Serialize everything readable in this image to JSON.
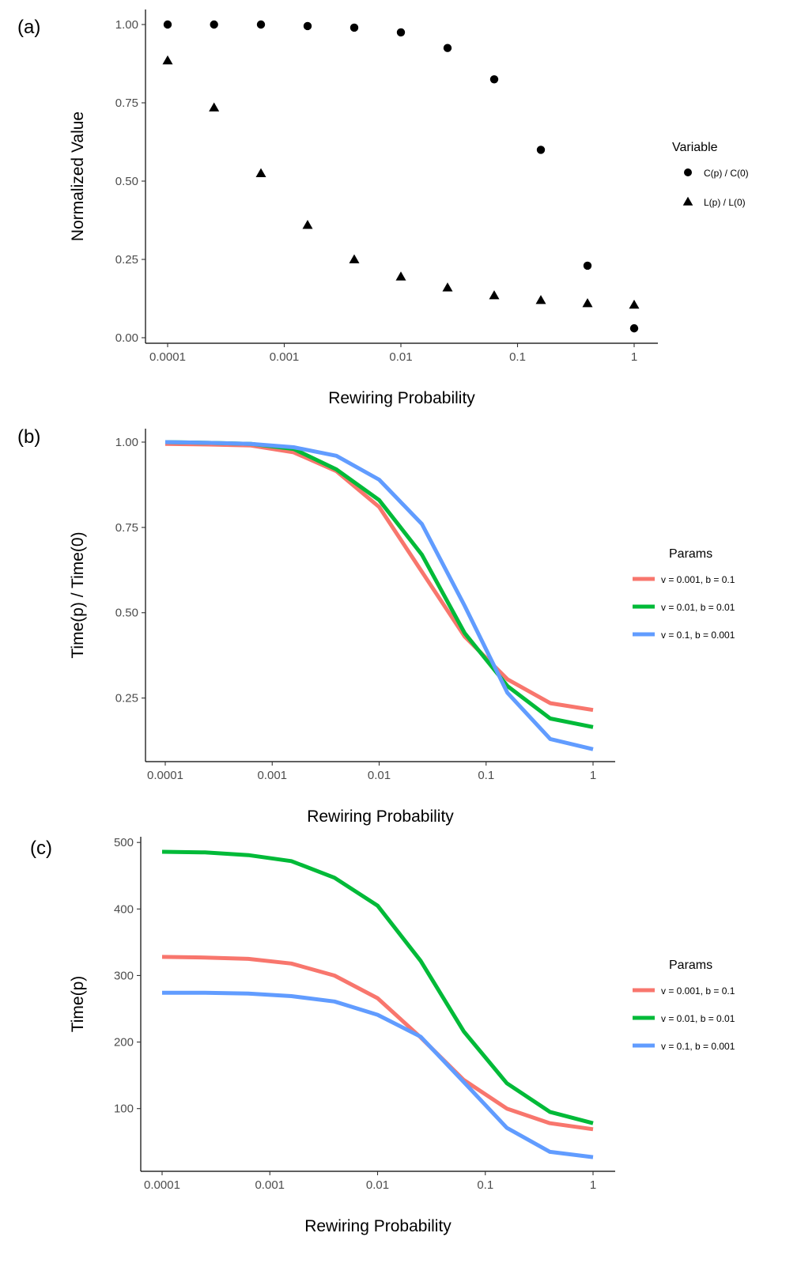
{
  "chart_data": [
    {
      "panel_label": "(a)",
      "type": "scatter",
      "x_scale": "log10",
      "xlabel": "Rewiring Probability",
      "ylabel": "Normalized Value",
      "xlim": [
        0.0001,
        1
      ],
      "ylim": [
        0,
        1
      ],
      "x_ticks": [
        {
          "value": 0.0001,
          "label": "0.0001"
        },
        {
          "value": 0.001,
          "label": "0.001"
        },
        {
          "value": 0.01,
          "label": "0.01"
        },
        {
          "value": 0.1,
          "label": "0.1"
        },
        {
          "value": 1,
          "label": "1"
        }
      ],
      "y_ticks": [
        {
          "value": 0,
          "label": "0.00"
        },
        {
          "value": 0.25,
          "label": "0.25"
        },
        {
          "value": 0.5,
          "label": "0.50"
        },
        {
          "value": 0.75,
          "label": "0.75"
        },
        {
          "value": 1,
          "label": "1.00"
        }
      ],
      "grid": false,
      "legend": {
        "title": "Variable",
        "position": "right"
      },
      "x": [
        0.0001,
        0.00025,
        0.000631,
        0.001585,
        0.003981,
        0.01,
        0.025119,
        0.063096,
        0.158489,
        0.398107,
        1
      ],
      "series": [
        {
          "name": "C(p) / C(0)",
          "shape": "circle",
          "color": "#000000",
          "values": [
            1.0,
            1.0,
            1.0,
            0.995,
            0.99,
            0.975,
            0.925,
            0.825,
            0.6,
            0.23,
            0.03
          ]
        },
        {
          "name": "L(p) / L(0)",
          "shape": "triangle",
          "color": "#000000",
          "values": [
            0.885,
            0.735,
            0.525,
            0.36,
            0.25,
            0.195,
            0.16,
            0.135,
            0.12,
            0.11,
            0.105
          ]
        }
      ]
    },
    {
      "panel_label": "(b)",
      "type": "line",
      "x_scale": "log10",
      "xlabel": "Rewiring Probability",
      "ylabel": "Time(p) / Time(0)",
      "xlim": [
        0.0001,
        1
      ],
      "ylim": [
        0.11,
        1.0
      ],
      "x_ticks": [
        {
          "value": 0.0001,
          "label": "0.0001"
        },
        {
          "value": 0.001,
          "label": "0.001"
        },
        {
          "value": 0.01,
          "label": "0.01"
        },
        {
          "value": 0.1,
          "label": "0.1"
        },
        {
          "value": 1,
          "label": "1"
        }
      ],
      "y_ticks": [
        {
          "value": 0.25,
          "label": "0.25"
        },
        {
          "value": 0.5,
          "label": "0.50"
        },
        {
          "value": 0.75,
          "label": "0.75"
        },
        {
          "value": 1,
          "label": "1.00"
        }
      ],
      "grid": false,
      "legend": {
        "title": "Params",
        "position": "right"
      },
      "x": [
        0.0001,
        0.00025,
        0.000631,
        0.001585,
        0.003981,
        0.01,
        0.025119,
        0.063096,
        0.158489,
        0.398107,
        1
      ],
      "series": [
        {
          "name": "v = 0.001, b = 0.1",
          "color": "#F8766D",
          "values": [
            0.995,
            0.993,
            0.99,
            0.97,
            0.915,
            0.81,
            0.62,
            0.43,
            0.305,
            0.235,
            0.215
          ]
        },
        {
          "name": "v = 0.01, b = 0.01",
          "color": "#00BA38",
          "values": [
            1.0,
            0.998,
            0.995,
            0.98,
            0.92,
            0.83,
            0.67,
            0.44,
            0.285,
            0.19,
            0.165
          ]
        },
        {
          "name": "v = 0.1, b = 0.001",
          "color": "#619CFF",
          "values": [
            1.0,
            0.998,
            0.995,
            0.985,
            0.96,
            0.89,
            0.76,
            0.52,
            0.265,
            0.13,
            0.1
          ]
        }
      ]
    },
    {
      "panel_label": "(c)",
      "type": "line",
      "x_scale": "log10",
      "xlabel": "Rewiring Probability",
      "ylabel": "Time(p)",
      "xlim": [
        0.0001,
        1
      ],
      "ylim": [
        20,
        505
      ],
      "x_ticks": [
        {
          "value": 0.0001,
          "label": "0.0001"
        },
        {
          "value": 0.001,
          "label": "0.001"
        },
        {
          "value": 0.01,
          "label": "0.01"
        },
        {
          "value": 0.1,
          "label": "0.1"
        },
        {
          "value": 1,
          "label": "1"
        }
      ],
      "y_ticks": [
        {
          "value": 100,
          "label": "100"
        },
        {
          "value": 200,
          "label": "200"
        },
        {
          "value": 300,
          "label": "300"
        },
        {
          "value": 400,
          "label": "400"
        },
        {
          "value": 500,
          "label": "500"
        }
      ],
      "grid": false,
      "legend": {
        "title": "Params",
        "position": "right"
      },
      "x": [
        0.0001,
        0.00025,
        0.000631,
        0.001585,
        0.003981,
        0.01,
        0.025119,
        0.063096,
        0.158489,
        0.398107,
        1
      ],
      "series": [
        {
          "name": "v = 0.001, b = 0.1",
          "color": "#F8766D",
          "values": [
            328,
            327,
            325,
            318,
            300,
            266,
            207,
            143,
            100,
            78,
            69
          ]
        },
        {
          "name": "v = 0.01, b = 0.01",
          "color": "#00BA38",
          "values": [
            486,
            485,
            481,
            472,
            447,
            405,
            322,
            216,
            138,
            95,
            78
          ]
        },
        {
          "name": "v = 0.1, b = 0.001",
          "color": "#619CFF",
          "values": [
            274,
            274,
            273,
            269,
            261,
            241,
            208,
            140,
            71,
            35,
            27
          ]
        }
      ]
    }
  ]
}
